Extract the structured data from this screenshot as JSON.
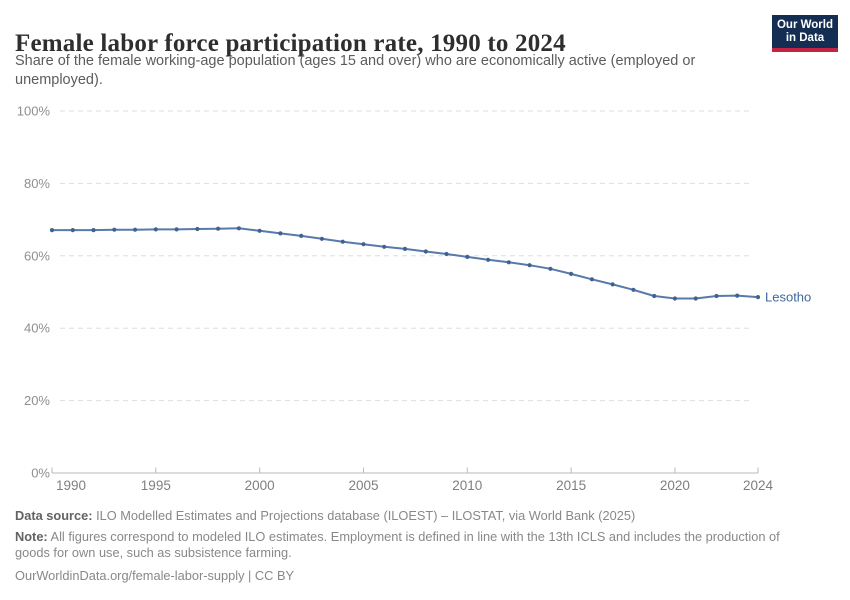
{
  "header": {
    "title": "Female labor force participation rate, 1990 to 2024",
    "subtitle": "Share of the female working-age population (ages 15 and over) who are economically active (employed or unemployed).",
    "logo": {
      "line1": "Our World",
      "line2": "in Data",
      "bg_color": "#132e52",
      "bar_color": "#c52343"
    }
  },
  "chart_data": {
    "type": "line",
    "title": "Female labor force participation rate, 1990 to 2024",
    "xlabel": "",
    "ylabel": "",
    "xlim": [
      1990,
      2024
    ],
    "ylim": [
      0,
      100
    ],
    "xticks": [
      1990,
      1995,
      2000,
      2005,
      2010,
      2015,
      2020,
      2024
    ],
    "yticks": [
      0,
      20,
      40,
      60,
      80,
      100
    ],
    "ytick_suffix": "%",
    "grid": "horizontal-dashed",
    "legend_position": "end-of-line-label",
    "x": [
      1990,
      1991,
      1992,
      1993,
      1994,
      1995,
      1996,
      1997,
      1998,
      1999,
      2000,
      2001,
      2002,
      2003,
      2004,
      2005,
      2006,
      2007,
      2008,
      2009,
      2010,
      2011,
      2012,
      2013,
      2014,
      2015,
      2016,
      2017,
      2018,
      2019,
      2020,
      2021,
      2022,
      2023,
      2024
    ],
    "series": [
      {
        "name": "Lesotho",
        "values": [
          67.1,
          67.1,
          67.1,
          67.2,
          67.2,
          67.3,
          67.3,
          67.4,
          67.5,
          67.6,
          66.9,
          66.2,
          65.5,
          64.7,
          63.9,
          63.2,
          62.5,
          61.9,
          61.2,
          60.5,
          59.7,
          58.9,
          58.2,
          57.4,
          56.4,
          55.0,
          53.5,
          52.1,
          50.6,
          48.9,
          48.2,
          48.2,
          48.9,
          49.0,
          48.6
        ],
        "line_color": "#5879ab",
        "marker_color": "#40628f",
        "label_color": "#3f689b"
      }
    ],
    "style": {
      "grid_color": "#dedede",
      "axis_color": "#bababa",
      "ytick_label_color": "#8f8f8f",
      "xtick_label_color": "#7f7f7f"
    }
  },
  "footer": {
    "datasource_label": "Data source:",
    "datasource_text": " ILO Modelled Estimates and Projections database (ILOEST) – ILOSTAT, via World Bank (2025)",
    "note_label": "Note:",
    "note_text": " All figures correspond to modeled ILO estimates. Employment is defined in line with the 13th ICLS and includes the production of goods for own use, such as subsistence farming.",
    "citation": "OurWorldinData.org/female-labor-supply | CC BY"
  }
}
